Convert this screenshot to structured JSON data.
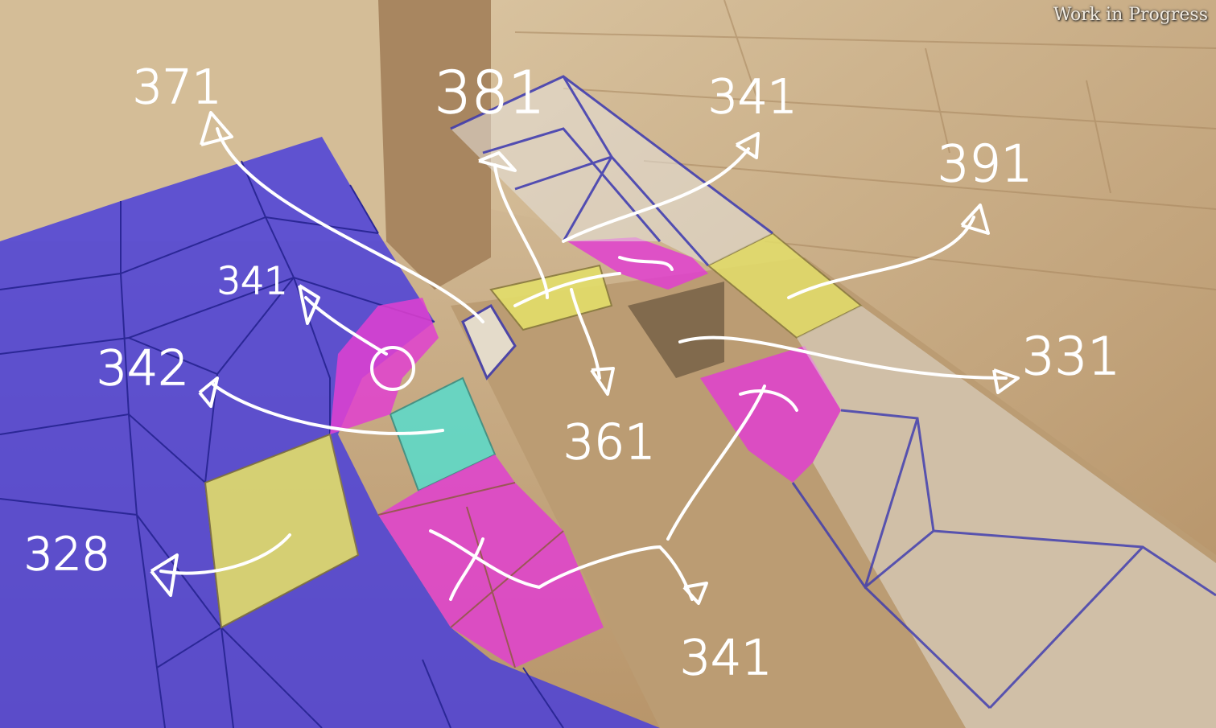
{
  "watermark": "Work in Progress",
  "annotations": {
    "label_371": "371",
    "label_381": "381",
    "label_341_top": "341",
    "label_391": "391",
    "label_341_left": "341",
    "label_342": "342",
    "label_331": "331",
    "label_361": "361",
    "label_328": "328",
    "label_341_bottom": "341"
  },
  "colors": {
    "blue_region": "#4a3fd9",
    "magenta_region": "#e040d0",
    "yellow_region": "#e3de6a",
    "cyan_region": "#5fd9c8",
    "white_region": "#e6e2dc",
    "stone": "#c9ad86",
    "annotation": "#ffffff"
  }
}
